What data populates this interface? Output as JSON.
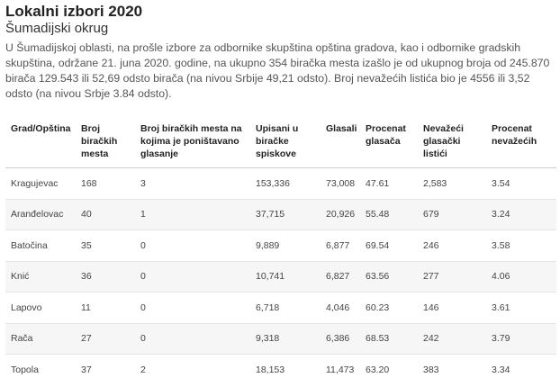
{
  "header": {
    "title": "Lokalni izbori 2020",
    "subtitle": "Šumadijski okrug",
    "description": "U Šumadijskoj oblasti, na prošle izbore za odbornike skupština opština gradova, kao i odbornike gradskih skupština, održane 21. juna 2020. godine, na ukupno 354 biračka mesta izašlo je od ukupnog broja od 245.870 birača 129.543 ili 52,69 odsto birača (na nivou Srbije 49,21 odsto). Broj nevažećih listića bio je 4556 ili 3,52 odsto (na nivou Srbje 3.84 odsto)."
  },
  "table": {
    "columns": [
      "Grad/Opština",
      "Broj biračkih mesta",
      "Broj biračkih mesta na kojima je poništavano glasanje",
      "Upisani u biračke spiskove",
      "Glasali",
      "Procenat glasača",
      "Nevažeći glasački listići",
      "Procenat nevažećih"
    ],
    "rows": [
      [
        "Kragujevac",
        "168",
        "3",
        "153,336",
        "73,008",
        "47.61",
        "2,583",
        "3.54"
      ],
      [
        "Aranđelovac",
        "40",
        "1",
        "37,715",
        "20,926",
        "55.48",
        "679",
        "3.24"
      ],
      [
        "Batočina",
        "35",
        "0",
        "9,889",
        "6,877",
        "69.54",
        "246",
        "3.58"
      ],
      [
        "Knić",
        "36",
        "0",
        "10,741",
        "6,827",
        "63.56",
        "277",
        "4.06"
      ],
      [
        "Lapovo",
        "11",
        "0",
        "6,718",
        "4,046",
        "60.23",
        "146",
        "3.61"
      ],
      [
        "Rača",
        "27",
        "0",
        "9,318",
        "6,386",
        "68.53",
        "242",
        "3.79"
      ],
      [
        "Topola",
        "37",
        "2",
        "18,153",
        "11,473",
        "63.20",
        "383",
        "3.34"
      ]
    ]
  }
}
